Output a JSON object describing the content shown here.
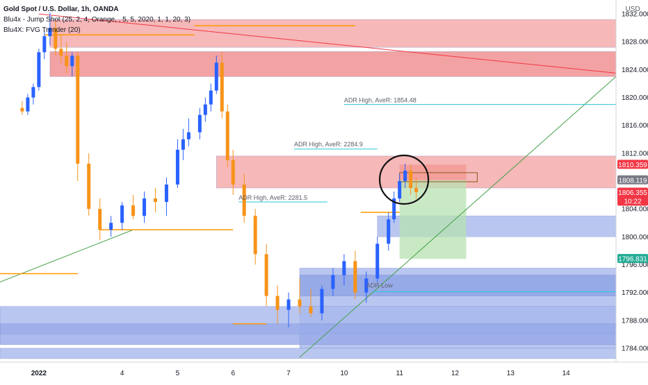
{
  "chart_data": {
    "type": "candlestick",
    "title": "Gold Spot / U.S. Dollar, 1h, OANDA",
    "indicators": [
      "Blu4x - Jump Shot (25, 2, 4, Orange, , 5, 5, 2020, 1, 1, 20, 3)",
      "Blu4X: FVG Trender (20)"
    ],
    "currency": "USD",
    "ylim": [
      1782,
      1834
    ],
    "y_ticks": [
      "1784.000",
      "1788.000",
      "1792.000",
      "1796.000",
      "1800.000",
      "1804.000",
      "1808.000",
      "1812.000",
      "1816.000",
      "1820.000",
      "1824.000",
      "1828.000",
      "1832.000"
    ],
    "x_ticks": [
      {
        "label": "2022",
        "i": 3
      },
      {
        "label": "4",
        "i": 18
      },
      {
        "label": "5",
        "i": 28
      },
      {
        "label": "6",
        "i": 38
      },
      {
        "label": "7",
        "i": 48
      },
      {
        "label": "10",
        "i": 58
      },
      {
        "label": "11",
        "i": 68
      },
      {
        "label": "12",
        "i": 78
      },
      {
        "label": "13",
        "i": 88
      },
      {
        "label": "14",
        "i": 98
      }
    ],
    "x_range": [
      -4,
      107
    ],
    "price_labels": [
      {
        "value": 1810.359,
        "text": "1810.359",
        "color": "#f23645"
      },
      {
        "value": 1808.119,
        "text": "1808.119",
        "color": "#787b86"
      },
      {
        "value": 1806.355,
        "text": "1806.355",
        "sub": "10:22",
        "color": "#f23645"
      },
      {
        "value": 1796.831,
        "text": "1796.831",
        "color": "#22ab94"
      }
    ],
    "annotations": [
      {
        "text": "ADR High, AveR: 1854.48",
        "i": 58,
        "value": 1819.3
      },
      {
        "text": "ADR High, AveR: 2284.9",
        "i": 49,
        "value": 1813.0
      },
      {
        "text": "ADR High, AveR: 2281.5",
        "i": 39,
        "value": 1805.3
      },
      {
        "text": "ADR Low",
        "i": 62,
        "value": 1792.7
      }
    ],
    "series": [
      {
        "name": "Gold Spot / U.S. Dollar",
        "ohlc": [
          [
            1818.5,
            1819.5,
            1817.5,
            1818.0
          ],
          [
            1818.0,
            1820.5,
            1817.5,
            1820.0
          ],
          [
            1820.0,
            1822.0,
            1819.0,
            1821.5
          ],
          [
            1821.5,
            1827.0,
            1821.0,
            1826.5
          ],
          [
            1826.5,
            1829.5,
            1825.5,
            1828.8
          ],
          [
            1828.8,
            1832.2,
            1827.5,
            1830.0
          ],
          [
            1830.0,
            1831.0,
            1826.0,
            1827.0
          ],
          [
            1827.0,
            1829.0,
            1825.0,
            1826.0
          ],
          [
            1826.0,
            1828.0,
            1823.5,
            1824.5
          ],
          [
            1824.5,
            1826.5,
            1823.0,
            1826.0
          ],
          [
            1826.0,
            1826.5,
            1808.0,
            1810.5
          ],
          [
            1810.5,
            1812.0,
            1803.0,
            1804.0
          ],
          [
            1804.0,
            1805.5,
            1799.5,
            1801.0
          ],
          [
            1801.0,
            1803.0,
            1800.0,
            1802.0
          ],
          [
            1802.0,
            1805.0,
            1801.0,
            1804.5
          ],
          [
            1804.5,
            1806.0,
            1802.5,
            1803.0
          ],
          [
            1803.0,
            1806.5,
            1802.0,
            1805.5
          ],
          [
            1805.5,
            1807.0,
            1803.5,
            1805.0
          ],
          [
            1805.0,
            1808.5,
            1803.0,
            1807.5
          ],
          [
            1807.5,
            1814.0,
            1807.0,
            1812.5
          ],
          [
            1812.5,
            1815.5,
            1811.0,
            1814.0
          ],
          [
            1814.0,
            1817.0,
            1813.0,
            1815.0
          ],
          [
            1815.0,
            1818.5,
            1814.0,
            1817.5
          ],
          [
            1817.5,
            1820.0,
            1816.5,
            1819.0
          ],
          [
            1819.0,
            1822.0,
            1818.0,
            1821.0
          ],
          [
            1821.0,
            1826.0,
            1820.5,
            1825.0
          ],
          [
            1825.0,
            1826.5,
            1817.0,
            1818.0
          ],
          [
            1818.0,
            1819.0,
            1810.0,
            1811.0
          ],
          [
            1811.0,
            1812.5,
            1806.0,
            1807.5
          ],
          [
            1807.5,
            1809.0,
            1802.0,
            1803.0
          ],
          [
            1803.0,
            1804.0,
            1796.0,
            1797.5
          ],
          [
            1797.5,
            1799.0,
            1790.0,
            1791.5
          ],
          [
            1791.5,
            1793.0,
            1787.5,
            1789.5
          ],
          [
            1789.5,
            1792.0,
            1787.0,
            1791.0
          ],
          [
            1791.0,
            1794.0,
            1789.0,
            1790.0
          ],
          [
            1790.0,
            1792.5,
            1788.5,
            1789.0
          ],
          [
            1789.0,
            1793.0,
            1788.0,
            1792.5
          ],
          [
            1792.5,
            1795.5,
            1791.5,
            1794.5
          ],
          [
            1794.5,
            1797.5,
            1793.0,
            1796.5
          ],
          [
            1796.5,
            1798.0,
            1791.0,
            1792.0
          ],
          [
            1792.0,
            1795.0,
            1790.5,
            1794.0
          ],
          [
            1794.0,
            1800.0,
            1793.5,
            1799.0
          ],
          [
            1799.0,
            1803.5,
            1798.0,
            1802.5
          ],
          [
            1802.5,
            1806.5,
            1802.0,
            1805.5
          ],
          [
            1805.5,
            1809.0,
            1805.0,
            1808.0
          ],
          [
            1808.0,
            1810.5,
            1807.0,
            1809.5
          ],
          [
            1809.5,
            1810.4,
            1806.0,
            1807.0
          ],
          [
            1807.0,
            1808.5,
            1805.5,
            1806.4
          ]
        ]
      }
    ],
    "candle_index_map": [
      0,
      1,
      2,
      3,
      4,
      5,
      6,
      7,
      8,
      9,
      10,
      12,
      14,
      16,
      18,
      20,
      22,
      24,
      26,
      28,
      29,
      30,
      32,
      33,
      34,
      35,
      36,
      37,
      38,
      40,
      42,
      44,
      46,
      48,
      50,
      52,
      54,
      56,
      58,
      60,
      62,
      64,
      66,
      67,
      68,
      69,
      70,
      71
    ],
    "colors": {
      "up": "#2962ff",
      "down": "#f7931a",
      "zone_red": "#f4a6a6",
      "zone_blue": "#a8b8ec",
      "zone_green": "#b7e1b0",
      "orange": "#ff9800"
    }
  }
}
